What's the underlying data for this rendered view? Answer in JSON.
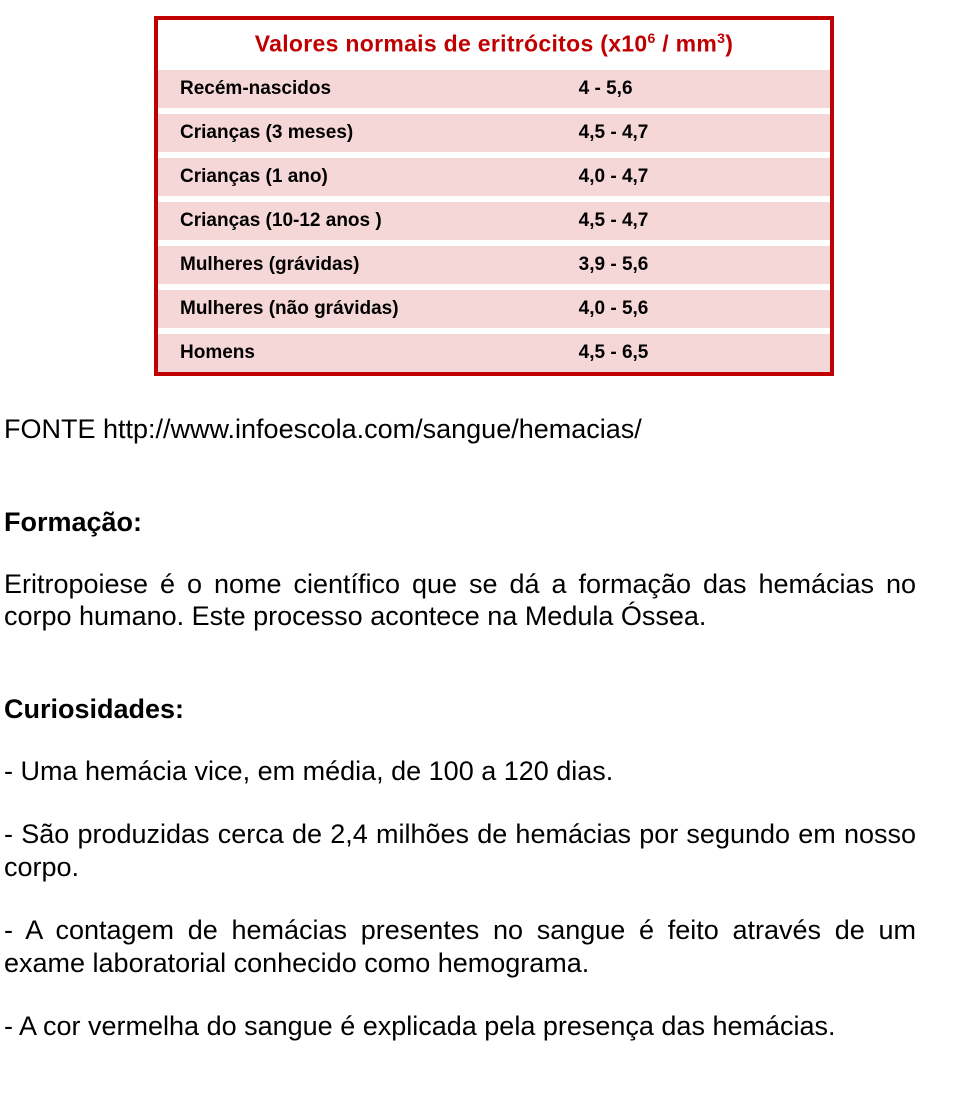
{
  "table": {
    "border_color": "#c00000",
    "stripe_color": "#f6d7d7",
    "header_color": "#c00000",
    "header_bg": "#ffffff",
    "title_prefix": "Valores normais de eritrócitos (x10",
    "title_sup1": "6",
    "title_mid": " / mm",
    "title_sup2": "3",
    "title_suffix": ")",
    "rows": [
      {
        "label": "Recém-nascidos",
        "value": "4 - 5,6"
      },
      {
        "label": "Crianças (3 meses)",
        "value": "4,5 - 4,7"
      },
      {
        "label": "Crianças (1 ano)",
        "value": "4,0 - 4,7"
      },
      {
        "label": "Crianças (10-12 anos )",
        "value": "4,5 - 4,7"
      },
      {
        "label": "Mulheres (grávidas)",
        "value": "3,9 - 5,6"
      },
      {
        "label": "Mulheres (não grávidas)",
        "value": "4,0 - 5,6"
      },
      {
        "label": "Homens",
        "value": "4,5 - 6,5"
      }
    ]
  },
  "source_line": "FONTE http://www.infoescola.com/sangue/hemacias/",
  "sections": {
    "formacao_h": "Formação:",
    "formacao_p": "Eritropoiese é o nome científico que se dá a formação das hemácias no corpo humano. Este processo acontece na Medula Óssea.",
    "curiosidades_h": "Curiosidades:",
    "b1": "- Uma hemácia vice, em média, de 100 a 120 dias.",
    "b2": "- São produzidas cerca de 2,4 milhões de hemácias por segundo em nosso corpo.",
    "b3": "- A contagem de hemácias presentes no sangue é feito através de um exame laboratorial conhecido como hemograma.",
    "b4": "- A cor vermelha do sangue é explicada pela presença das hemácias."
  }
}
